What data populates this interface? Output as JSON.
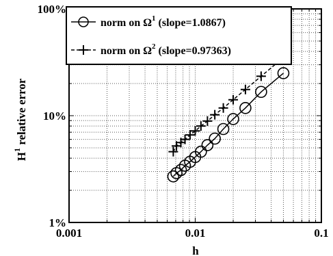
{
  "chart_data": {
    "type": "line",
    "xlabel": "h",
    "ylabel_main": "H",
    "ylabel_sup": "1",
    "ylabel_rest": " relative error",
    "x_scale": "log",
    "y_scale": "log",
    "xlim": [
      0.001,
      0.1
    ],
    "ylim": [
      1,
      100
    ],
    "x_ticks": [
      {
        "value": 0.001,
        "label": "0.001"
      },
      {
        "value": 0.01,
        "label": "0.01"
      },
      {
        "value": 0.1,
        "label": "0.1"
      }
    ],
    "y_ticks": [
      {
        "value": 1,
        "label": "1%"
      },
      {
        "value": 10,
        "label": "10%"
      },
      {
        "value": 100,
        "label": "100%"
      }
    ],
    "grid": "dotted, major and minor",
    "legend_position": "top-left",
    "series": [
      {
        "legend_main": "norm on Ω",
        "legend_sup": "1",
        "legend_tail": "  (slope=1.0867)",
        "marker": "circle",
        "color": "#000000",
        "x": [
          0.05,
          0.0333,
          0.025,
          0.02,
          0.0167,
          0.0143,
          0.0125,
          0.0111,
          0.01,
          0.0091,
          0.0083,
          0.0077,
          0.0071,
          0.0067
        ],
        "y": [
          25.0,
          16.7,
          11.8,
          9.3,
          7.5,
          6.1,
          5.3,
          4.6,
          4.1,
          3.7,
          3.4,
          3.1,
          2.9,
          2.7
        ]
      },
      {
        "legend_main": "norm on Ω",
        "legend_sup": "2",
        "legend_tail": " (slope=0.97363)",
        "marker": "plus",
        "color": "#000000",
        "x": [
          0.05,
          0.0333,
          0.025,
          0.02,
          0.0167,
          0.0143,
          0.0125,
          0.0111,
          0.01,
          0.0091,
          0.0083,
          0.0077,
          0.0071,
          0.0067
        ],
        "y": [
          35.0,
          23.4,
          17.6,
          14.1,
          11.8,
          10.2,
          8.9,
          8.0,
          7.2,
          6.6,
          6.0,
          5.6,
          5.2,
          4.6
        ]
      }
    ]
  }
}
